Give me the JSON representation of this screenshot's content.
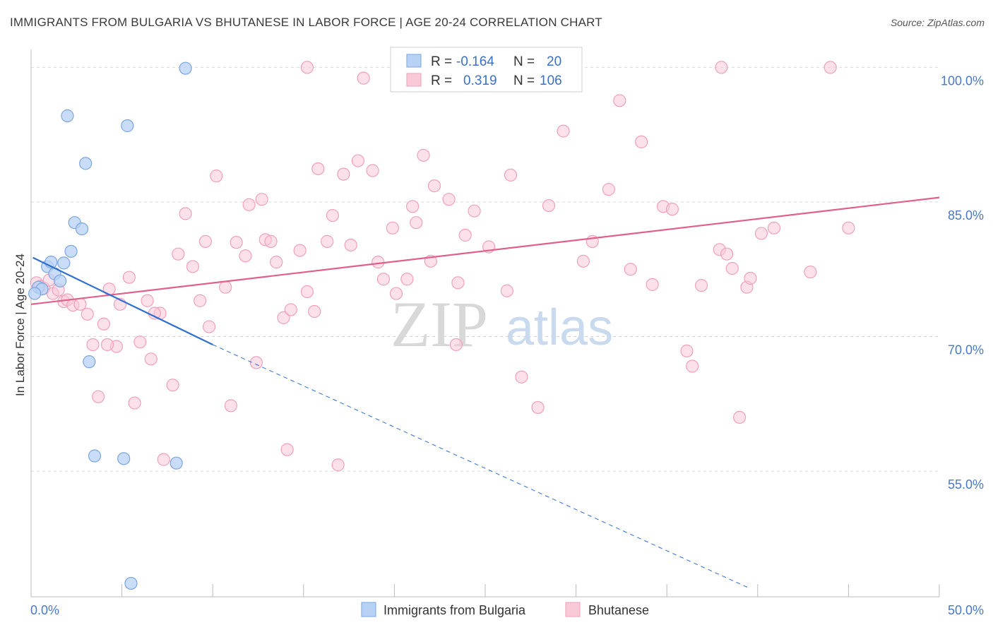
{
  "header": {
    "title": "IMMIGRANTS FROM BULGARIA VS BHUTANESE IN LABOR FORCE | AGE 20-24 CORRELATION CHART",
    "source": "Source: ZipAtlas.com"
  },
  "watermark": {
    "part1": "ZIP",
    "part2": "atlas"
  },
  "colors": {
    "blue_fill": "#b8d2f5",
    "blue_stroke": "#7aa6e0",
    "blue_line": "#2f6fd0",
    "pink_fill": "#f9c9d8",
    "pink_stroke": "#f0a0bb",
    "pink_line": "#e0608a",
    "grid": "#d9d9d9",
    "tick_text": "#4a78c8"
  },
  "legend": {
    "rows": [
      {
        "r_label": "R =",
        "r_value": "-0.164",
        "n_label": "N =",
        "n_value": "20"
      },
      {
        "r_label": "R =",
        "r_value": "0.319",
        "n_label": "N =",
        "n_value": "106"
      }
    ]
  },
  "chart_data": {
    "type": "scatter",
    "title": "IMMIGRANTS FROM BULGARIA VS BHUTANESE IN LABOR FORCE | AGE 20-24 CORRELATION CHART",
    "xlabel": "",
    "ylabel": "In Labor Force | Age 20-24",
    "xlim": [
      0,
      50
    ],
    "ylim": [
      41,
      102
    ],
    "x_tick_labels": [
      {
        "value": 0,
        "label": "0.0%"
      },
      {
        "value": 50,
        "label": "50.0%"
      }
    ],
    "y_tick_labels": [
      {
        "value": 100,
        "label": "100.0%"
      },
      {
        "value": 85,
        "label": "85.0%"
      },
      {
        "value": 70,
        "label": "70.0%"
      },
      {
        "value": 55,
        "label": "55.0%"
      }
    ],
    "y_gridlines": [
      100,
      85,
      70,
      55
    ],
    "grid": true,
    "legend_position": "top-center",
    "series": [
      {
        "name": "Immigrants from Bulgaria",
        "r": -0.164,
        "n": 20,
        "trend": {
          "x0": 0.1,
          "y0": 78.8,
          "x1": 10.0,
          "y1": 69.1,
          "dashed_to_x": 39.5,
          "dashed_to_y": 42.0
        },
        "points": [
          [
            0.4,
            75.5
          ],
          [
            0.6,
            75.3
          ],
          [
            0.9,
            77.8
          ],
          [
            1.1,
            78.3
          ],
          [
            1.3,
            77.0
          ],
          [
            1.6,
            76.2
          ],
          [
            1.8,
            78.2
          ],
          [
            2.0,
            94.6
          ],
          [
            2.2,
            79.5
          ],
          [
            2.4,
            82.7
          ],
          [
            2.8,
            82.0
          ],
          [
            3.0,
            89.3
          ],
          [
            3.2,
            67.2
          ],
          [
            3.5,
            56.7
          ],
          [
            5.1,
            56.4
          ],
          [
            5.3,
            93.5
          ],
          [
            5.5,
            42.5
          ],
          [
            8.0,
            55.9
          ],
          [
            8.5,
            99.9
          ],
          [
            0.2,
            74.8
          ]
        ]
      },
      {
        "name": "Bhutanese",
        "r": 0.319,
        "n": 106,
        "trend": {
          "x0": 0,
          "y0": 73.6,
          "x1": 50,
          "y1": 85.5
        },
        "points": [
          [
            0.3,
            76.0
          ],
          [
            0.5,
            75.6
          ],
          [
            0.7,
            75.4
          ],
          [
            1.0,
            76.3
          ],
          [
            1.2,
            74.8
          ],
          [
            1.5,
            75.2
          ],
          [
            1.8,
            73.9
          ],
          [
            2.0,
            74.1
          ],
          [
            2.3,
            73.5
          ],
          [
            2.7,
            73.6
          ],
          [
            3.1,
            72.5
          ],
          [
            3.4,
            69.1
          ],
          [
            3.7,
            63.3
          ],
          [
            4.0,
            71.4
          ],
          [
            4.3,
            75.3
          ],
          [
            4.7,
            68.9
          ],
          [
            4.9,
            73.6
          ],
          [
            5.4,
            76.6
          ],
          [
            5.7,
            62.6
          ],
          [
            6.0,
            69.4
          ],
          [
            6.4,
            74.0
          ],
          [
            6.6,
            67.5
          ],
          [
            7.1,
            72.6
          ],
          [
            7.3,
            56.3
          ],
          [
            7.8,
            64.6
          ],
          [
            8.1,
            79.2
          ],
          [
            8.5,
            83.7
          ],
          [
            8.9,
            77.8
          ],
          [
            9.3,
            74.0
          ],
          [
            9.6,
            80.6
          ],
          [
            9.8,
            71.1
          ],
          [
            10.2,
            87.9
          ],
          [
            10.7,
            75.5
          ],
          [
            11.0,
            62.3
          ],
          [
            11.3,
            80.5
          ],
          [
            11.8,
            79.0
          ],
          [
            12.0,
            84.7
          ],
          [
            12.4,
            67.1
          ],
          [
            12.7,
            85.3
          ],
          [
            12.9,
            80.8
          ],
          [
            13.2,
            80.6
          ],
          [
            13.5,
            78.3
          ],
          [
            13.9,
            72.1
          ],
          [
            14.1,
            57.4
          ],
          [
            14.3,
            73.0
          ],
          [
            14.8,
            79.6
          ],
          [
            15.2,
            75.0
          ],
          [
            15.6,
            72.8
          ],
          [
            15.8,
            88.7
          ],
          [
            16.3,
            80.6
          ],
          [
            16.6,
            83.5
          ],
          [
            16.9,
            55.7
          ],
          [
            17.2,
            88.1
          ],
          [
            17.6,
            80.2
          ],
          [
            18.0,
            89.6
          ],
          [
            18.3,
            98.8
          ],
          [
            18.8,
            88.5
          ],
          [
            19.1,
            78.3
          ],
          [
            19.4,
            76.4
          ],
          [
            19.9,
            82.1
          ],
          [
            20.1,
            74.8
          ],
          [
            20.7,
            76.4
          ],
          [
            21.0,
            84.5
          ],
          [
            21.2,
            82.7
          ],
          [
            21.6,
            90.2
          ],
          [
            22.2,
            86.8
          ],
          [
            22.0,
            78.4
          ],
          [
            23.0,
            85.3
          ],
          [
            23.4,
            69.1
          ],
          [
            23.5,
            76.0
          ],
          [
            23.9,
            81.3
          ],
          [
            24.4,
            84.0
          ],
          [
            25.2,
            80.0
          ],
          [
            26.2,
            75.1
          ],
          [
            26.4,
            88.0
          ],
          [
            27.0,
            65.5
          ],
          [
            27.9,
            62.1
          ],
          [
            28.5,
            84.6
          ],
          [
            29.3,
            92.9
          ],
          [
            30.4,
            78.4
          ],
          [
            30.9,
            80.6
          ],
          [
            31.8,
            86.4
          ],
          [
            32.4,
            96.3
          ],
          [
            33.0,
            77.5
          ],
          [
            33.6,
            91.7
          ],
          [
            34.2,
            75.8
          ],
          [
            34.8,
            84.5
          ],
          [
            35.3,
            84.2
          ],
          [
            36.1,
            68.4
          ],
          [
            36.4,
            66.7
          ],
          [
            36.9,
            75.7
          ],
          [
            37.9,
            79.7
          ],
          [
            38.3,
            79.2
          ],
          [
            38.6,
            77.6
          ],
          [
            39.0,
            61.0
          ],
          [
            39.4,
            75.5
          ],
          [
            39.6,
            76.5
          ],
          [
            40.2,
            81.5
          ],
          [
            40.9,
            82.1
          ],
          [
            42.9,
            77.2
          ],
          [
            45.0,
            82.1
          ],
          [
            15.2,
            100.0
          ],
          [
            38.0,
            100.0
          ],
          [
            44.0,
            100.0
          ],
          [
            4.2,
            69.1
          ],
          [
            6.8,
            72.6
          ]
        ]
      }
    ]
  },
  "bottom_legend": {
    "items": [
      {
        "label": "Immigrants from Bulgaria"
      },
      {
        "label": "Bhutanese"
      }
    ]
  }
}
